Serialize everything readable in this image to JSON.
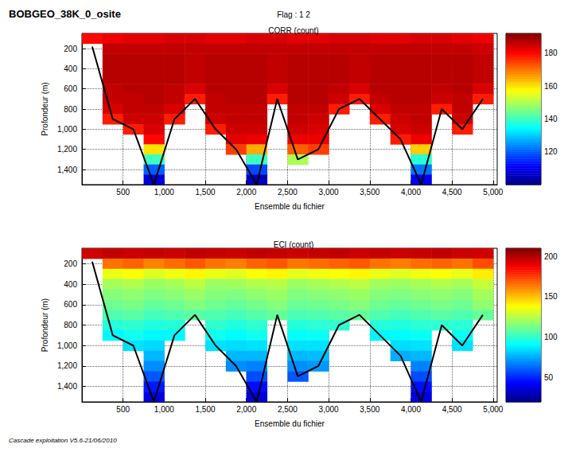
{
  "title": "BOBGEO_38K_0_osite",
  "subtitle": "Flag : 1 2",
  "footer": "Cascade exploitation V5.6-21/06/2010",
  "chart_data": [
    {
      "type": "heatmap",
      "title": "CORR (count)",
      "x_label": "Ensemble du fichier",
      "y_label": "Profondeur (m)",
      "x": [
        125,
        375,
        625,
        875,
        1125,
        1375,
        1625,
        1875,
        2125,
        2375,
        2625,
        2875,
        3125,
        3375,
        3625,
        3875,
        4125,
        4375,
        4625,
        4875
      ],
      "y": [
        100,
        200,
        300,
        400,
        500,
        600,
        700,
        800,
        900,
        1000,
        1100,
        1200,
        1300,
        1400,
        1500
      ],
      "cells": [
        [
          180,
          182,
          183,
          183,
          184,
          184,
          183,
          183,
          184,
          184,
          183,
          183,
          184,
          184,
          183,
          183,
          184,
          184,
          183,
          182
        ],
        [
          null,
          186,
          186,
          186,
          186,
          186,
          186,
          186,
          186,
          186,
          186,
          186,
          186,
          186,
          186,
          186,
          186,
          186,
          186,
          185
        ],
        [
          null,
          187,
          187,
          187,
          187,
          186,
          187,
          187,
          187,
          186,
          187,
          187,
          187,
          186,
          187,
          187,
          187,
          187,
          187,
          186
        ],
        [
          null,
          187,
          187,
          187,
          187,
          186,
          187,
          187,
          187,
          186,
          187,
          187,
          187,
          186,
          187,
          187,
          187,
          187,
          187,
          186
        ],
        [
          null,
          187,
          187,
          187,
          187,
          186,
          187,
          187,
          187,
          186,
          187,
          187,
          187,
          186,
          187,
          187,
          187,
          187,
          187,
          186
        ],
        [
          null,
          186,
          187,
          187,
          186,
          184,
          187,
          187,
          187,
          184,
          187,
          187,
          186,
          184,
          187,
          187,
          187,
          186,
          187,
          184
        ],
        [
          null,
          186,
          186,
          187,
          186,
          178,
          186,
          187,
          187,
          178,
          187,
          187,
          185,
          178,
          186,
          187,
          187,
          185,
          186,
          178
        ],
        [
          null,
          184,
          186,
          186,
          184,
          null,
          186,
          186,
          186,
          null,
          186,
          186,
          178,
          null,
          184,
          186,
          186,
          178,
          186,
          null
        ],
        [
          null,
          178,
          185,
          185,
          178,
          null,
          185,
          186,
          186,
          null,
          186,
          185,
          null,
          null,
          178,
          185,
          186,
          null,
          185,
          null
        ],
        [
          null,
          null,
          178,
          184,
          null,
          null,
          178,
          185,
          185,
          null,
          185,
          184,
          null,
          null,
          null,
          184,
          185,
          null,
          178,
          null
        ],
        [
          null,
          null,
          null,
          180,
          null,
          null,
          null,
          183,
          182,
          null,
          182,
          182,
          null,
          null,
          null,
          178,
          182,
          null,
          null,
          null
        ],
        [
          null,
          null,
          null,
          160,
          null,
          null,
          null,
          175,
          165,
          null,
          172,
          175,
          null,
          null,
          null,
          null,
          162,
          null,
          null,
          null
        ],
        [
          null,
          null,
          null,
          140,
          null,
          null,
          null,
          null,
          140,
          null,
          150,
          null,
          null,
          null,
          null,
          null,
          138,
          null,
          null,
          null
        ],
        [
          null,
          null,
          null,
          120,
          null,
          null,
          null,
          null,
          118,
          null,
          null,
          null,
          null,
          null,
          null,
          null,
          122,
          null,
          null,
          null
        ],
        [
          null,
          null,
          null,
          108,
          null,
          null,
          null,
          null,
          105,
          null,
          null,
          null,
          null,
          null,
          null,
          null,
          110,
          null,
          null,
          null
        ]
      ],
      "bottom_depth": [
        180,
        900,
        1000,
        1550,
        900,
        700,
        1000,
        1200,
        1550,
        700,
        1300,
        1200,
        800,
        700,
        900,
        1100,
        1550,
        800,
        1000,
        700
      ],
      "xlim": [
        0,
        5050
      ],
      "xticks": [
        500,
        1000,
        1500,
        2000,
        2500,
        3000,
        3500,
        4000,
        4500,
        5000
      ],
      "ylim": [
        50,
        1550
      ],
      "yticks": [
        200,
        400,
        600,
        800,
        1000,
        1200,
        1400
      ],
      "colorbar_range": [
        100,
        192
      ],
      "colorbar_ticks": [
        120,
        140,
        160,
        180
      ],
      "grid": true
    },
    {
      "type": "heatmap",
      "title": "ECI (count)",
      "x_label": "Ensemble du fichier",
      "y_label": "Profondeur (m)",
      "x": [
        125,
        375,
        625,
        875,
        1125,
        1375,
        1625,
        1875,
        2125,
        2375,
        2625,
        2875,
        3125,
        3375,
        3625,
        3875,
        4125,
        4375,
        4625,
        4875
      ],
      "y": [
        100,
        200,
        300,
        400,
        500,
        600,
        700,
        800,
        900,
        1000,
        1100,
        1200,
        1300,
        1400,
        1500
      ],
      "cells": [
        [
          195,
          198,
          196,
          197,
          196,
          198,
          197,
          196,
          198,
          197,
          196,
          197,
          198,
          196,
          197,
          196,
          197,
          198,
          196,
          195
        ],
        [
          null,
          165,
          168,
          162,
          166,
          170,
          165,
          163,
          168,
          170,
          164,
          166,
          168,
          170,
          165,
          163,
          166,
          168,
          165,
          172
        ],
        [
          null,
          135,
          138,
          132,
          136,
          140,
          135,
          133,
          138,
          140,
          134,
          136,
          138,
          140,
          135,
          133,
          136,
          138,
          135,
          142
        ],
        [
          null,
          122,
          124,
          120,
          122,
          126,
          120,
          121,
          124,
          125,
          120,
          122,
          124,
          126,
          121,
          120,
          122,
          124,
          122,
          128
        ],
        [
          null,
          116,
          118,
          115,
          117,
          120,
          116,
          115,
          118,
          120,
          115,
          117,
          118,
          120,
          116,
          115,
          117,
          118,
          116,
          122
        ],
        [
          null,
          112,
          114,
          110,
          112,
          115,
          112,
          110,
          113,
          116,
          111,
          112,
          114,
          116,
          112,
          110,
          112,
          114,
          112,
          118
        ],
        [
          null,
          106,
          108,
          104,
          106,
          108,
          106,
          104,
          107,
          110,
          105,
          106,
          108,
          110,
          106,
          104,
          106,
          108,
          106,
          110
        ],
        [
          null,
          98,
          100,
          97,
          98,
          null,
          100,
          97,
          100,
          null,
          98,
          99,
          100,
          null,
          98,
          97,
          99,
          100,
          99,
          null
        ],
        [
          null,
          90,
          94,
          90,
          90,
          null,
          94,
          91,
          94,
          null,
          92,
          93,
          null,
          null,
          90,
          91,
          93,
          null,
          93,
          null
        ],
        [
          null,
          null,
          86,
          84,
          null,
          null,
          86,
          85,
          86,
          null,
          86,
          86,
          null,
          null,
          null,
          85,
          86,
          null,
          86,
          null
        ],
        [
          null,
          null,
          null,
          78,
          null,
          null,
          null,
          78,
          78,
          null,
          78,
          79,
          null,
          null,
          null,
          76,
          78,
          null,
          null,
          null
        ],
        [
          null,
          null,
          null,
          70,
          null,
          null,
          null,
          70,
          68,
          null,
          70,
          72,
          null,
          null,
          null,
          null,
          68,
          null,
          null,
          null
        ],
        [
          null,
          null,
          null,
          60,
          null,
          null,
          null,
          null,
          58,
          null,
          60,
          null,
          null,
          null,
          null,
          null,
          58,
          null,
          null,
          null
        ],
        [
          null,
          null,
          null,
          48,
          null,
          null,
          null,
          null,
          46,
          null,
          null,
          null,
          null,
          null,
          null,
          null,
          46,
          null,
          null,
          null
        ],
        [
          null,
          null,
          null,
          38,
          null,
          null,
          null,
          null,
          36,
          null,
          null,
          null,
          null,
          null,
          null,
          null,
          38,
          null,
          null,
          null
        ]
      ],
      "bottom_depth": [
        180,
        900,
        1000,
        1550,
        900,
        700,
        1000,
        1200,
        1550,
        700,
        1300,
        1200,
        800,
        700,
        900,
        1100,
        1550,
        800,
        1000,
        700
      ],
      "xlim": [
        0,
        5050
      ],
      "xticks": [
        500,
        1000,
        1500,
        2000,
        2500,
        3000,
        3500,
        4000,
        4500,
        5000
      ],
      "ylim": [
        50,
        1550
      ],
      "yticks": [
        200,
        400,
        600,
        800,
        1000,
        1200,
        1400
      ],
      "colorbar_range": [
        20,
        210
      ],
      "colorbar_ticks": [
        50,
        100,
        150,
        200
      ],
      "grid": true
    }
  ]
}
